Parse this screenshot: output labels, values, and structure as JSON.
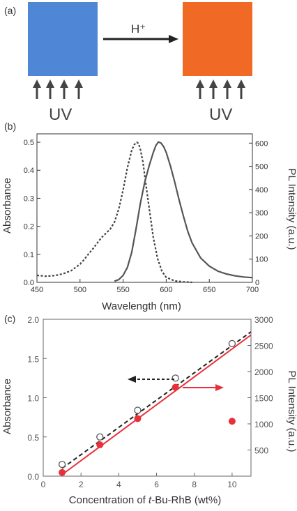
{
  "panel_a": {
    "label": "(a)",
    "arrow_label": "H⁺",
    "uv_left": "UV",
    "uv_right": "UV",
    "colors": {
      "before": "#4f86d6",
      "after": "#f06a25"
    }
  },
  "chart_data": [
    {
      "panel": "(b)",
      "type": "line",
      "xlabel": "Wavelength (nm)",
      "ylabel": "Absorbance",
      "y2label": "PL Intensity (a.u.)",
      "xlim": [
        450,
        700
      ],
      "ylim": [
        0,
        0.53
      ],
      "y2lim": [
        0,
        640
      ],
      "xticks": [
        "450",
        "500",
        "550",
        "600",
        "650",
        "700"
      ],
      "yticks": [
        "0.0",
        "0.1",
        "0.2",
        "0.3",
        "0.4",
        "0.5"
      ],
      "y2ticks": [
        "0",
        "100",
        "200",
        "300",
        "400",
        "500",
        "600"
      ],
      "series": [
        {
          "style": "dashed",
          "axis": "left",
          "color": "#444444",
          "x": [
            450,
            460,
            470,
            480,
            490,
            500,
            505,
            510,
            515,
            520,
            525,
            530,
            535,
            540,
            545,
            550,
            555,
            560,
            563,
            566,
            568,
            570,
            573,
            576,
            580,
            585,
            590,
            595,
            600,
            610,
            620,
            630
          ],
          "y": [
            0.025,
            0.022,
            0.024,
            0.03,
            0.042,
            0.065,
            0.082,
            0.102,
            0.12,
            0.14,
            0.16,
            0.175,
            0.19,
            0.215,
            0.262,
            0.33,
            0.41,
            0.472,
            0.492,
            0.5,
            0.495,
            0.475,
            0.43,
            0.36,
            0.27,
            0.16,
            0.085,
            0.04,
            0.018,
            0.005,
            0.002,
            0.0
          ]
        },
        {
          "style": "solid",
          "axis": "right",
          "color": "#555555",
          "x": [
            540,
            545,
            550,
            555,
            560,
            565,
            570,
            575,
            580,
            585,
            588,
            591,
            594,
            597,
            600,
            605,
            610,
            615,
            620,
            625,
            630,
            640,
            650,
            660,
            670,
            680,
            690,
            700
          ],
          "y": [
            5,
            12,
            30,
            65,
            130,
            230,
            340,
            430,
            500,
            560,
            590,
            605,
            600,
            585,
            560,
            500,
            430,
            355,
            285,
            220,
            170,
            105,
            70,
            48,
            36,
            28,
            23,
            20
          ]
        }
      ]
    },
    {
      "panel": "(c)",
      "type": "scatter",
      "xlabel": "Concentration of t-Bu-RhB (wt%)",
      "xlabel_plain": "Concentration of ",
      "xlabel_italic": "t",
      "xlabel_rest": "-Bu-RhB (wt%)",
      "ylabel": "Absorbance",
      "y2label": "PL Intensity (a.u.)",
      "xlim": [
        0,
        11
      ],
      "ylim": [
        0,
        2.0
      ],
      "y2lim": [
        0,
        3000
      ],
      "xticks": [
        "0",
        "2",
        "4",
        "6",
        "8",
        "10"
      ],
      "yticks": [
        "0.0",
        "0.5",
        "1.0",
        "1.5",
        "2.0"
      ],
      "y2ticks": [
        "500",
        "1000",
        "1500",
        "2000",
        "2500",
        "3000"
      ],
      "series": [
        {
          "marker": "open-circle",
          "axis": "left",
          "color": "#555555",
          "x": [
            1,
            3,
            5,
            7,
            10
          ],
          "y": [
            0.15,
            0.5,
            0.84,
            1.25,
            1.69
          ],
          "fit": {
            "style": "dashed",
            "color": "#222222",
            "x": [
              1,
              11
            ],
            "y": [
              0.1,
              1.84
            ]
          }
        },
        {
          "marker": "filled-circle",
          "axis": "right",
          "color": "#e8303a",
          "x": [
            1,
            3,
            5,
            7,
            10
          ],
          "y": [
            70,
            600,
            1100,
            1700,
            1050
          ],
          "fit": {
            "style": "solid",
            "color": "#e8303a",
            "x": [
              1,
              11
            ],
            "y": [
              30,
              2700
            ]
          }
        }
      ],
      "annotations": [
        {
          "type": "arrow",
          "direction": "left",
          "style": "dashed",
          "color": "#222222"
        },
        {
          "type": "arrow",
          "direction": "right",
          "style": "solid",
          "color": "#e8303a"
        }
      ]
    }
  ]
}
